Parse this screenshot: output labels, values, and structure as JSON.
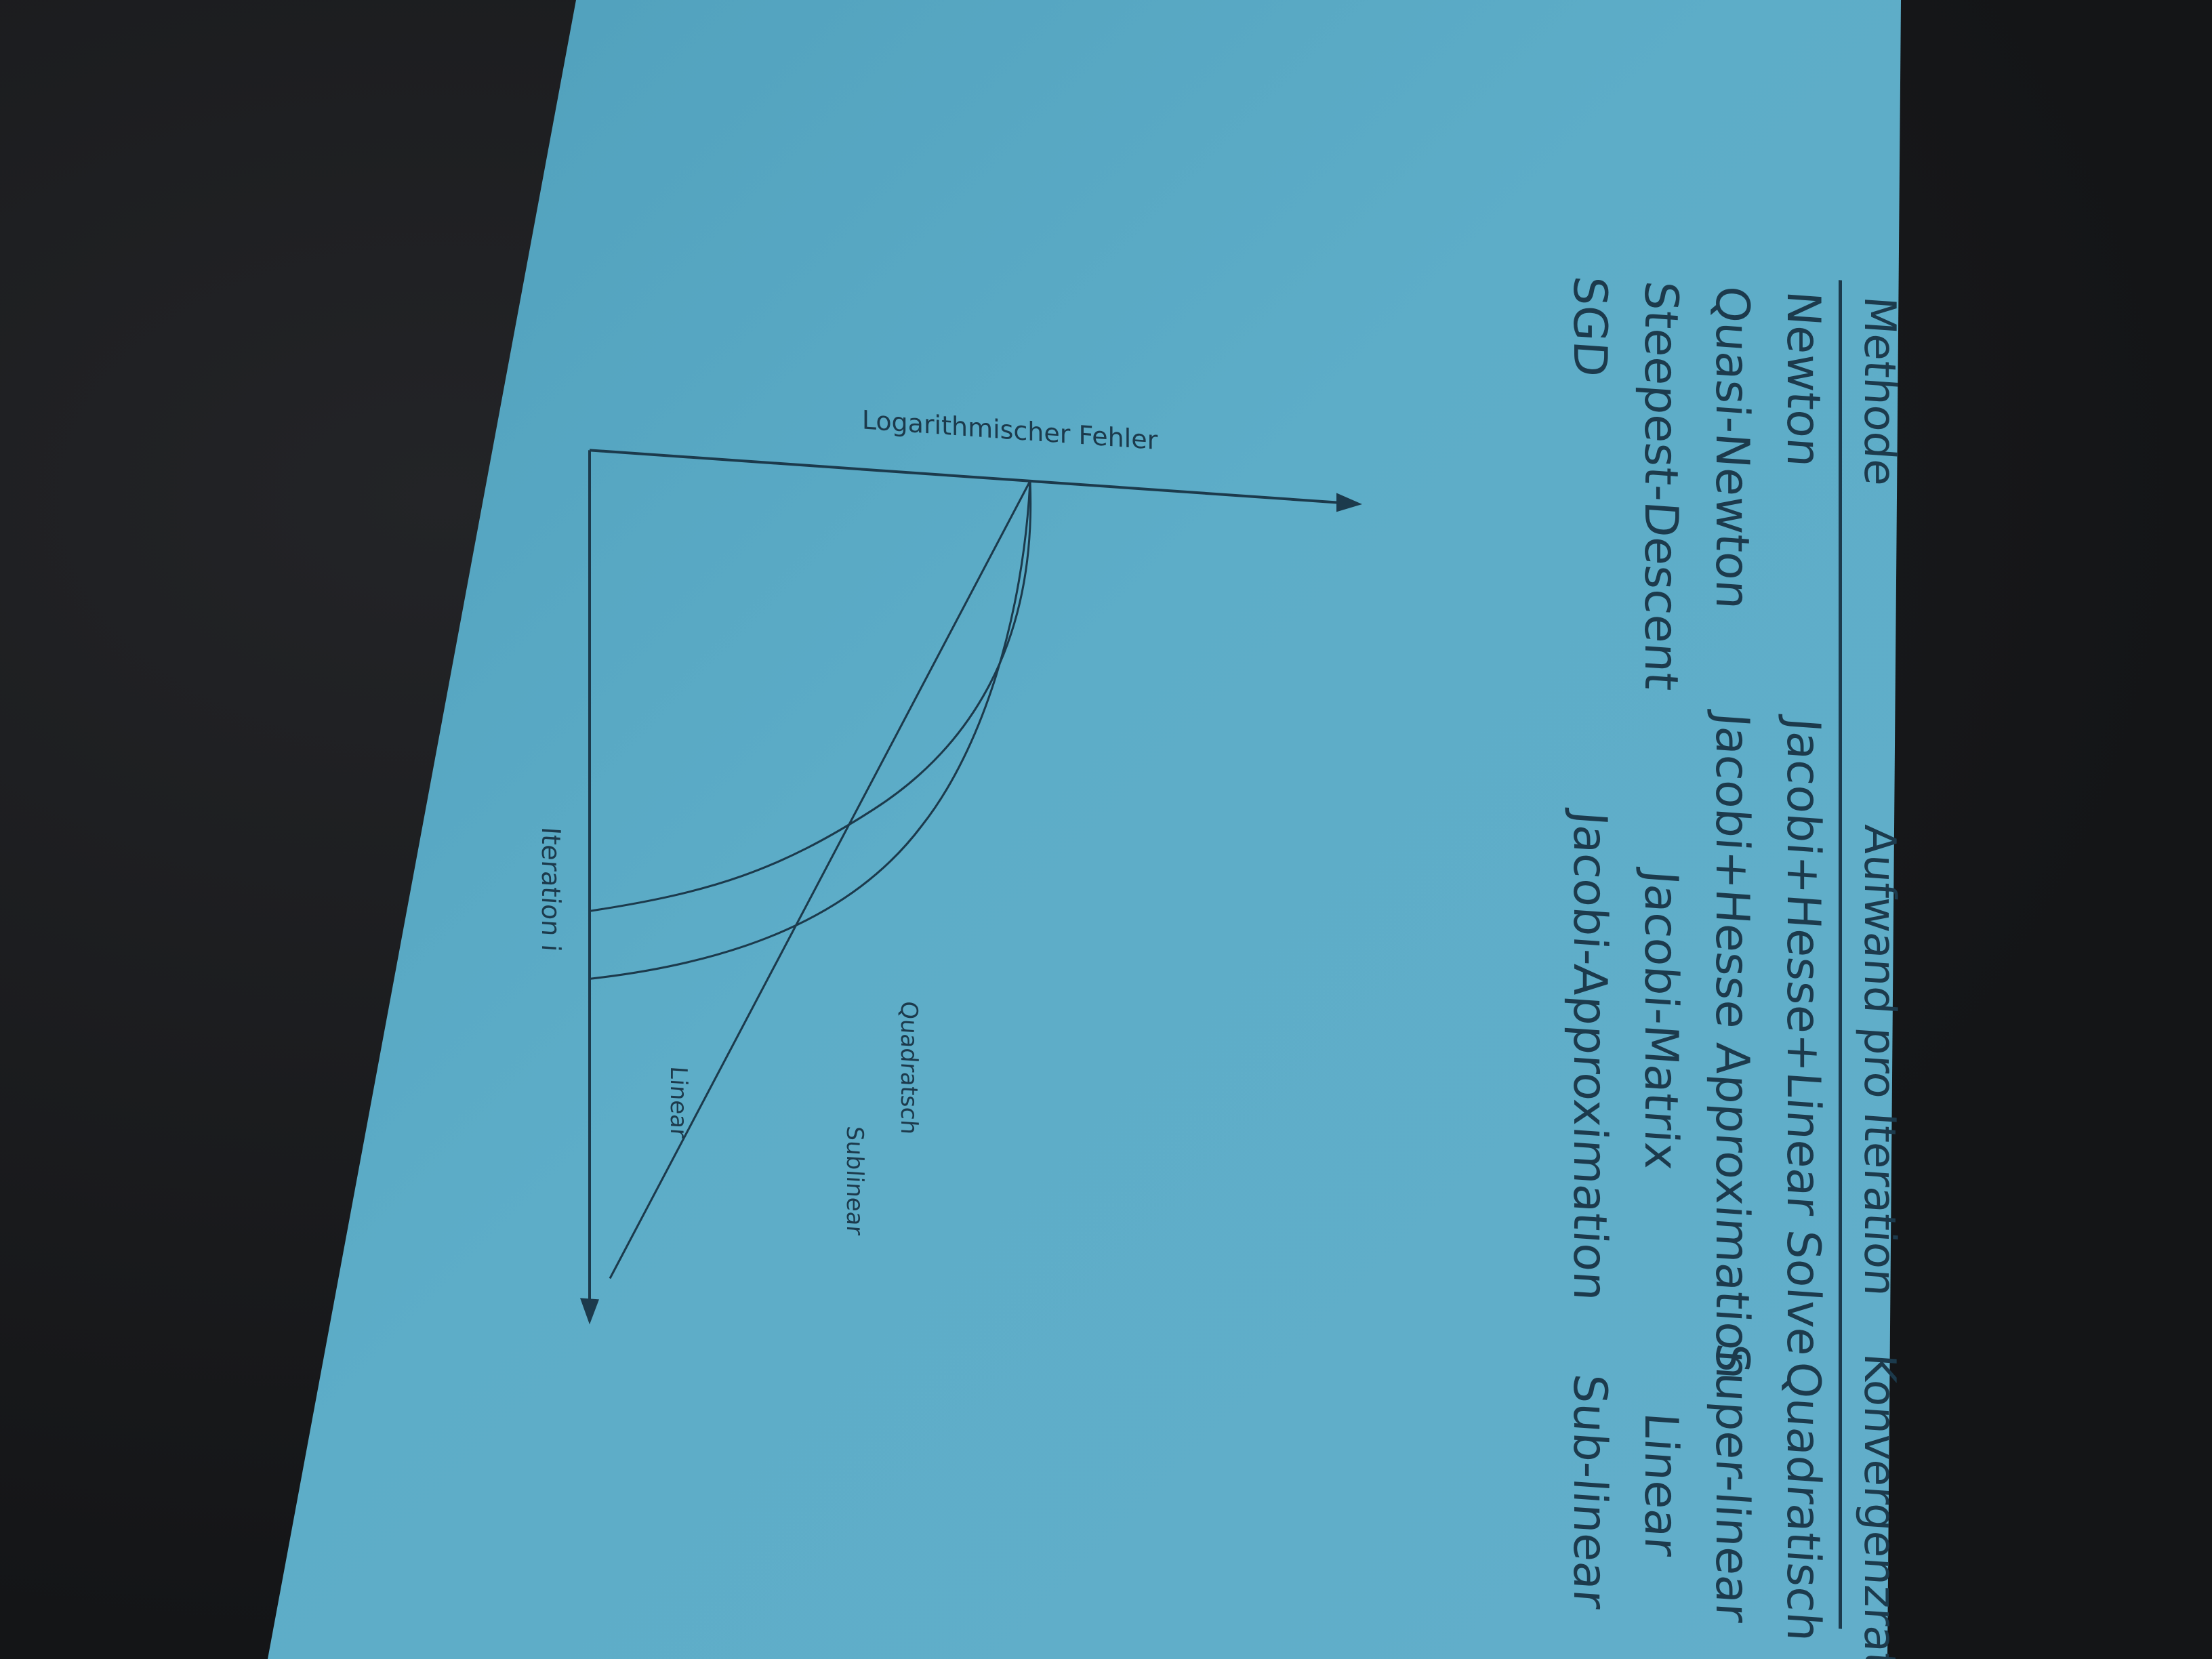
{
  "table": {
    "headers": [
      "Methode",
      "Aufwand pro Iteration",
      "Konvergenzrate"
    ],
    "rows": [
      {
        "methode": "Newton",
        "aufwand": "Jacobi+Hesse+Linear Solve",
        "rate": "Quadratisch"
      },
      {
        "methode": "Quasi-Newton",
        "aufwand": "Jacobi+Hesse Approximation",
        "rate": "Super-linear"
      },
      {
        "methode": "Steepest-Descent",
        "aufwand": "Jacobi-Matrix",
        "rate": "Linear"
      },
      {
        "methode": "SGD",
        "aufwand": "Jacobi-Approximation",
        "rate": "Sub-linear"
      }
    ]
  },
  "chart_data": {
    "type": "line",
    "xlabel": "Iteration i",
    "ylabel": "Logarithmischer Fehler",
    "series": [
      {
        "name": "Quadratsch"
      },
      {
        "name": "Linear"
      },
      {
        "name": "Sublinear"
      }
    ]
  },
  "colors": {
    "slide_bg": "#5aaac4",
    "ink": "#1c3a4c",
    "surround": "#18191b"
  }
}
